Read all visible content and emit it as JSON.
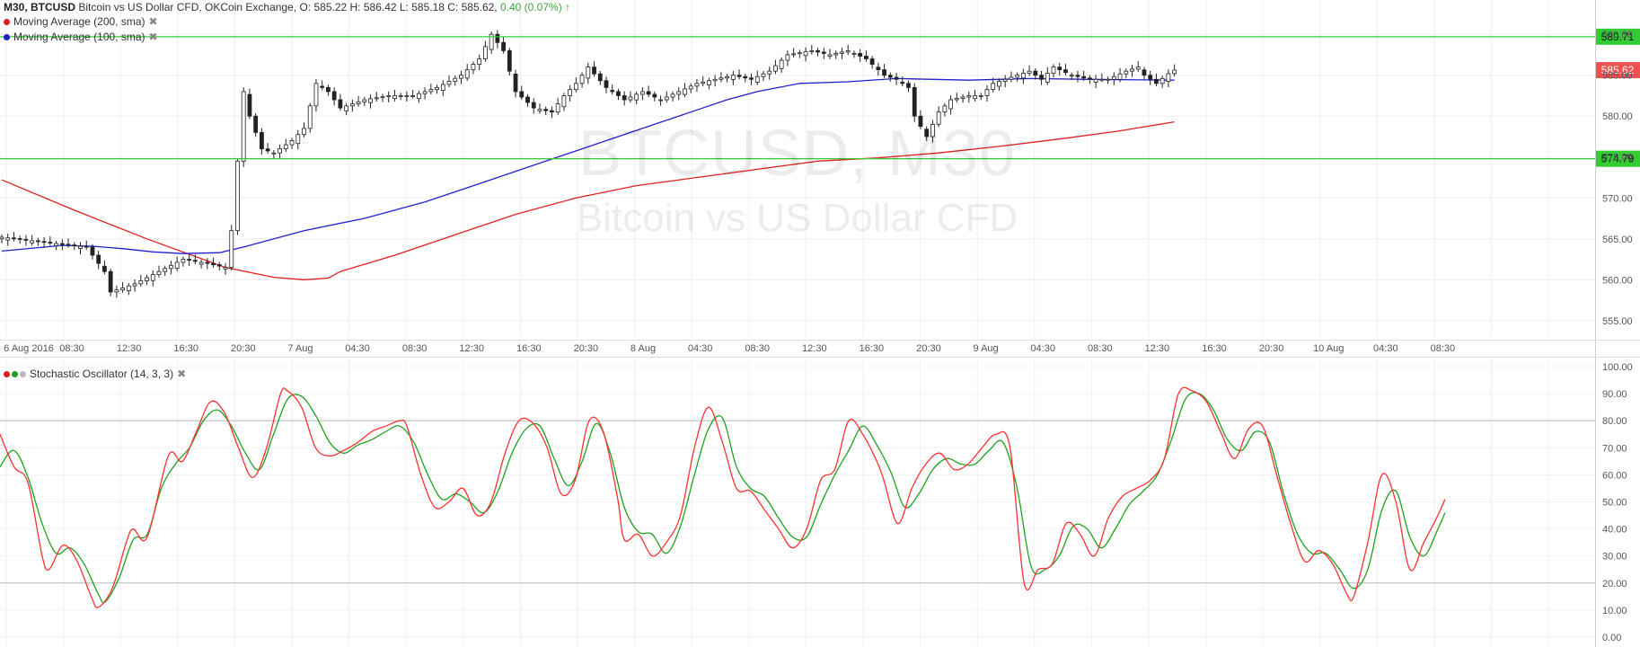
{
  "header": {
    "symbol": "M30, BTCUSD",
    "desc": "Bitcoin vs US Dollar CFD, OKCoin Exchange,",
    "ohlc": "O: 585.22 H: 586.42 L: 585.18 C: 585.62,",
    "change": "0.40 (0.07%)",
    "change_arrow": "↑"
  },
  "legend": [
    {
      "label": "Moving Average (200, sma)",
      "color": "#e02020",
      "close": "✖"
    },
    {
      "label": "Moving Average (100, sma)",
      "color": "#2020d0",
      "close": "✖"
    }
  ],
  "watermark": {
    "title": "BTCUSD, M30",
    "subtitle": "Bitcoin vs US Dollar CFD"
  },
  "stoch_legend": {
    "label": "Stochastic Oscillator (14, 3, 3)",
    "close": "✖",
    "dots": [
      "#e02020",
      "#20a020",
      "#bbbbbb"
    ]
  },
  "colors": {
    "k_line": "#ff3030",
    "d_line": "#20a020",
    "hline": "#33cc33",
    "ma200": "#e02020",
    "ma100": "#2020d0",
    "price_tag": "#f05050"
  },
  "chart_data": [
    {
      "type": "candlestick",
      "ylim": [
        553,
        592
      ],
      "yticks": [
        555,
        560,
        565,
        570,
        575,
        580,
        585,
        590
      ],
      "ytick_labels": [
        "555.00",
        "560.00",
        "565.00",
        "570.00",
        "575.00",
        "580.00",
        "585.00",
        "590.00"
      ],
      "hlines": [
        {
          "value": 589.71,
          "label": "589.71"
        },
        {
          "value": 574.79,
          "label": "574.79"
        }
      ],
      "last_price": {
        "value": 585.62,
        "label": "585.62"
      },
      "xtick_labels": [
        "6 Aug 2016",
        "08:30",
        "12:30",
        "16:30",
        "20:30",
        "7 Aug",
        "04:30",
        "08:30",
        "12:30",
        "16:30",
        "20:30",
        "8 Aug",
        "04:30",
        "08:30",
        "12:30",
        "16:30",
        "20:30",
        "9 Aug",
        "04:30",
        "08:30",
        "12:30",
        "16:30",
        "20:30",
        "10 Aug",
        "04:30",
        "08:30"
      ],
      "close_anchors": [
        [
          0,
          565.2
        ],
        [
          8,
          564.5
        ],
        [
          14,
          564.0
        ],
        [
          17,
          561.0
        ],
        [
          18,
          558.5
        ],
        [
          22,
          559.5
        ],
        [
          26,
          561.0
        ],
        [
          30,
          562.5
        ],
        [
          34,
          562.0
        ],
        [
          37,
          561.5
        ],
        [
          38,
          566.0
        ],
        [
          39,
          574.5
        ],
        [
          40,
          583.0
        ],
        [
          41,
          580.0
        ],
        [
          43,
          576.0
        ],
        [
          45,
          575.5
        ],
        [
          48,
          577.0
        ],
        [
          50,
          578.5
        ],
        [
          52,
          584.0
        ],
        [
          54,
          583.0
        ],
        [
          56,
          581.0
        ],
        [
          60,
          582.0
        ],
        [
          64,
          582.5
        ],
        [
          68,
          582.5
        ],
        [
          72,
          583.5
        ],
        [
          76,
          585.0
        ],
        [
          79,
          587.0
        ],
        [
          81,
          590.0
        ],
        [
          83,
          588.0
        ],
        [
          85,
          583.0
        ],
        [
          88,
          581.0
        ],
        [
          91,
          580.5
        ],
        [
          93,
          582.5
        ],
        [
          95,
          584.0
        ],
        [
          97,
          586.0
        ],
        [
          100,
          583.5
        ],
        [
          103,
          582.0
        ],
        [
          106,
          583.0
        ],
        [
          109,
          582.0
        ],
        [
          112,
          583.0
        ],
        [
          115,
          584.0
        ],
        [
          118,
          584.5
        ],
        [
          121,
          585.0
        ],
        [
          124,
          584.5
        ],
        [
          127,
          585.5
        ],
        [
          130,
          587.5
        ],
        [
          134,
          588.0
        ],
        [
          137,
          587.5
        ],
        [
          140,
          588.0
        ],
        [
          143,
          587.0
        ],
        [
          146,
          585.0
        ],
        [
          148,
          584.5
        ],
        [
          150,
          583.5
        ],
        [
          151,
          580.0
        ],
        [
          153,
          577.5
        ],
        [
          155,
          580.5
        ],
        [
          157,
          582.0
        ],
        [
          160,
          582.5
        ],
        [
          162,
          582.5
        ],
        [
          164,
          584.0
        ],
        [
          166,
          584.5
        ],
        [
          168,
          585.0
        ],
        [
          170,
          585.5
        ],
        [
          172,
          584.5
        ],
        [
          174,
          586.0
        ],
        [
          177,
          585.0
        ],
        [
          180,
          584.5
        ],
        [
          183,
          584.5
        ],
        [
          186,
          585.5
        ],
        [
          188,
          586.0
        ],
        [
          189,
          585.0
        ],
        [
          191,
          584.0
        ],
        [
          193,
          585.2
        ],
        [
          194,
          585.62
        ]
      ],
      "ma200_points": [
        [
          0,
          572.2
        ],
        [
          12,
          568.5
        ],
        [
          24,
          565.0
        ],
        [
          37,
          561.5
        ],
        [
          45,
          560.3
        ],
        [
          50,
          560.0
        ],
        [
          54,
          560.2
        ],
        [
          56,
          561.0
        ],
        [
          65,
          563.0
        ],
        [
          75,
          565.5
        ],
        [
          85,
          568.0
        ],
        [
          95,
          570.0
        ],
        [
          105,
          571.5
        ],
        [
          115,
          572.5
        ],
        [
          125,
          573.5
        ],
        [
          135,
          574.5
        ],
        [
          145,
          574.9
        ],
        [
          155,
          575.5
        ],
        [
          165,
          576.3
        ],
        [
          175,
          577.2
        ],
        [
          185,
          578.2
        ],
        [
          194,
          579.3
        ]
      ],
      "ma100_points": [
        [
          0,
          563.5
        ],
        [
          10,
          564.2
        ],
        [
          15,
          564.1
        ],
        [
          20,
          563.8
        ],
        [
          25,
          563.4
        ],
        [
          30,
          563.2
        ],
        [
          36,
          563.3
        ],
        [
          40,
          564.0
        ],
        [
          50,
          566.0
        ],
        [
          60,
          567.5
        ],
        [
          70,
          569.5
        ],
        [
          80,
          572.0
        ],
        [
          90,
          574.5
        ],
        [
          100,
          577.0
        ],
        [
          110,
          579.5
        ],
        [
          120,
          582.0
        ],
        [
          125,
          583.0
        ],
        [
          132,
          584.0
        ],
        [
          140,
          584.2
        ],
        [
          148,
          584.6
        ],
        [
          160,
          584.4
        ],
        [
          170,
          584.6
        ],
        [
          180,
          584.5
        ],
        [
          194,
          584.4
        ]
      ]
    },
    {
      "type": "line",
      "ylim": [
        -2,
        102
      ],
      "yticks": [
        0,
        10,
        20,
        30,
        40,
        50,
        60,
        70,
        80,
        90,
        100
      ],
      "ytick_labels": [
        "0.00",
        "10.00",
        "20.00",
        "30.00",
        "40.00",
        "50.00",
        "60.00",
        "70.00",
        "80.00",
        "90.00",
        "100.00"
      ],
      "hlines": [
        20,
        80
      ],
      "k_anchors": [
        [
          0,
          75
        ],
        [
          2,
          63
        ],
        [
          4,
          57
        ],
        [
          6,
          30
        ],
        [
          7,
          25
        ],
        [
          9,
          34
        ],
        [
          11,
          28
        ],
        [
          13,
          15
        ],
        [
          14,
          11
        ],
        [
          16,
          18
        ],
        [
          18,
          35
        ],
        [
          19,
          40
        ],
        [
          21,
          37
        ],
        [
          24,
          67
        ],
        [
          26,
          65
        ],
        [
          28,
          76
        ],
        [
          30,
          87
        ],
        [
          32,
          83
        ],
        [
          34,
          70
        ],
        [
          36,
          59
        ],
        [
          38,
          70
        ],
        [
          40,
          90
        ],
        [
          41,
          91
        ],
        [
          43,
          85
        ],
        [
          45,
          70
        ],
        [
          47,
          67
        ],
        [
          49,
          69
        ],
        [
          51,
          72
        ],
        [
          53,
          76
        ],
        [
          55,
          78
        ],
        [
          57,
          80
        ],
        [
          58,
          78
        ],
        [
          60,
          60
        ],
        [
          62,
          48
        ],
        [
          64,
          50
        ],
        [
          66,
          55
        ],
        [
          68,
          45
        ],
        [
          70,
          50
        ],
        [
          72,
          68
        ],
        [
          74,
          80
        ],
        [
          76,
          79
        ],
        [
          78,
          70
        ],
        [
          80,
          53
        ],
        [
          82,
          58
        ],
        [
          84,
          80
        ],
        [
          86,
          76
        ],
        [
          88,
          52
        ],
        [
          89,
          36
        ],
        [
          91,
          38
        ],
        [
          93,
          30
        ],
        [
          95,
          35
        ],
        [
          97,
          45
        ],
        [
          99,
          70
        ],
        [
          101,
          85
        ],
        [
          103,
          72
        ],
        [
          105,
          55
        ],
        [
          107,
          54
        ],
        [
          109,
          47
        ],
        [
          111,
          40
        ],
        [
          113,
          33
        ],
        [
          115,
          40
        ],
        [
          117,
          58
        ],
        [
          119,
          62
        ],
        [
          121,
          80
        ],
        [
          123,
          75
        ],
        [
          125,
          65
        ],
        [
          126,
          58
        ],
        [
          128,
          42
        ],
        [
          130,
          55
        ],
        [
          132,
          64
        ],
        [
          134,
          68
        ],
        [
          136,
          62
        ],
        [
          138,
          64
        ],
        [
          140,
          70
        ],
        [
          142,
          75
        ],
        [
          144,
          70
        ],
        [
          146,
          20
        ],
        [
          148,
          25
        ],
        [
          150,
          27
        ],
        [
          152,
          42
        ],
        [
          154,
          38
        ],
        [
          156,
          30
        ],
        [
          158,
          44
        ],
        [
          160,
          52
        ],
        [
          162,
          55
        ],
        [
          164,
          58
        ],
        [
          166,
          66
        ],
        [
          168,
          90
        ],
        [
          170,
          91
        ],
        [
          172,
          87
        ],
        [
          174,
          76
        ],
        [
          176,
          66
        ],
        [
          178,
          77
        ],
        [
          180,
          78
        ],
        [
          182,
          60
        ],
        [
          184,
          42
        ],
        [
          186,
          28
        ],
        [
          188,
          32
        ],
        [
          190,
          27
        ],
        [
          192,
          16
        ],
        [
          193,
          15
        ],
        [
          195,
          35
        ],
        [
          197,
          60
        ],
        [
          199,
          50
        ],
        [
          201,
          25
        ],
        [
          203,
          35
        ],
        [
          205,
          45
        ],
        [
          206,
          51
        ]
      ],
      "d_anchors": [
        [
          0,
          63
        ],
        [
          2,
          69
        ],
        [
          4,
          59
        ],
        [
          6,
          42
        ],
        [
          8,
          31
        ],
        [
          10,
          33
        ],
        [
          12,
          27
        ],
        [
          14,
          16
        ],
        [
          15,
          13
        ],
        [
          17,
          22
        ],
        [
          19,
          36
        ],
        [
          21,
          38
        ],
        [
          23,
          55
        ],
        [
          25,
          64
        ],
        [
          27,
          70
        ],
        [
          29,
          80
        ],
        [
          31,
          84
        ],
        [
          33,
          78
        ],
        [
          35,
          68
        ],
        [
          37,
          62
        ],
        [
          39,
          75
        ],
        [
          41,
          88
        ],
        [
          43,
          89
        ],
        [
          45,
          82
        ],
        [
          47,
          72
        ],
        [
          49,
          68
        ],
        [
          51,
          71
        ],
        [
          53,
          73
        ],
        [
          55,
          76
        ],
        [
          57,
          78
        ],
        [
          59,
          72
        ],
        [
          61,
          60
        ],
        [
          63,
          51
        ],
        [
          65,
          53
        ],
        [
          67,
          50
        ],
        [
          69,
          46
        ],
        [
          71,
          54
        ],
        [
          73,
          68
        ],
        [
          75,
          77
        ],
        [
          77,
          78
        ],
        [
          79,
          66
        ],
        [
          81,
          56
        ],
        [
          83,
          65
        ],
        [
          85,
          79
        ],
        [
          87,
          68
        ],
        [
          89,
          48
        ],
        [
          91,
          39
        ],
        [
          93,
          38
        ],
        [
          95,
          31
        ],
        [
          97,
          41
        ],
        [
          99,
          60
        ],
        [
          101,
          77
        ],
        [
          103,
          81
        ],
        [
          105,
          63
        ],
        [
          107,
          55
        ],
        [
          109,
          52
        ],
        [
          111,
          44
        ],
        [
          113,
          37
        ],
        [
          115,
          37
        ],
        [
          117,
          49
        ],
        [
          119,
          60
        ],
        [
          121,
          69
        ],
        [
          123,
          78
        ],
        [
          125,
          71
        ],
        [
          127,
          61
        ],
        [
          129,
          48
        ],
        [
          131,
          53
        ],
        [
          133,
          62
        ],
        [
          135,
          66
        ],
        [
          137,
          64
        ],
        [
          139,
          64
        ],
        [
          141,
          69
        ],
        [
          143,
          72
        ],
        [
          145,
          55
        ],
        [
          147,
          26
        ],
        [
          149,
          25
        ],
        [
          151,
          30
        ],
        [
          153,
          41
        ],
        [
          155,
          40
        ],
        [
          157,
          33
        ],
        [
          159,
          40
        ],
        [
          161,
          49
        ],
        [
          163,
          54
        ],
        [
          165,
          60
        ],
        [
          167,
          73
        ],
        [
          169,
          88
        ],
        [
          171,
          90
        ],
        [
          173,
          84
        ],
        [
          175,
          73
        ],
        [
          177,
          69
        ],
        [
          179,
          76
        ],
        [
          181,
          72
        ],
        [
          183,
          53
        ],
        [
          185,
          38
        ],
        [
          187,
          31
        ],
        [
          189,
          31
        ],
        [
          191,
          25
        ],
        [
          193,
          18
        ],
        [
          195,
          25
        ],
        [
          197,
          47
        ],
        [
          199,
          54
        ],
        [
          201,
          37
        ],
        [
          203,
          30
        ],
        [
          205,
          40
        ],
        [
          206,
          46
        ]
      ]
    }
  ]
}
